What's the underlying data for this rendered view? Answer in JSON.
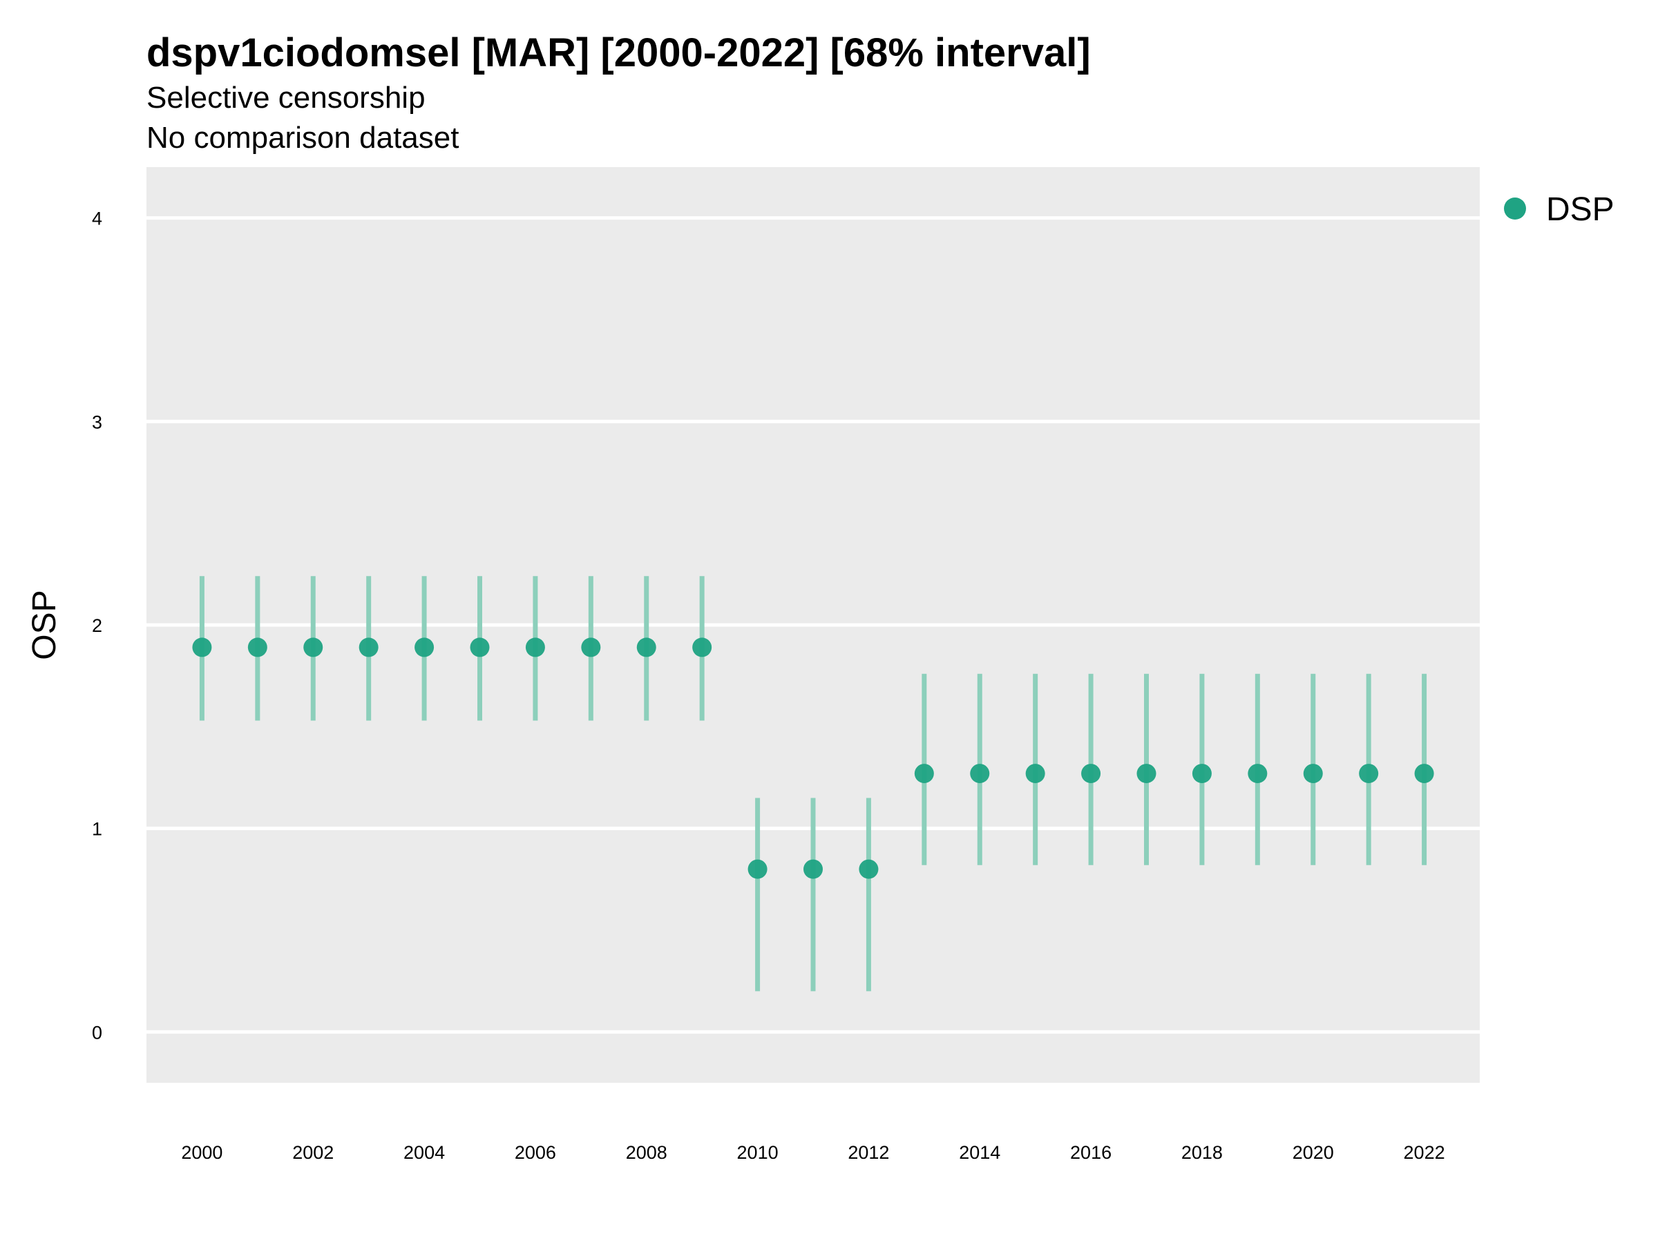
{
  "chart_data": {
    "type": "scatter",
    "title": "dspv1ciodomsel [MAR] [2000-2022] [68% interval]",
    "subtitle": "Selective censorship",
    "subtitle2": "No comparison dataset",
    "xlabel": "",
    "ylabel": "OSP",
    "ylim": [
      -0.25,
      4.25
    ],
    "xlim": [
      1999,
      2023
    ],
    "yticks": [
      0,
      1,
      2,
      3,
      4
    ],
    "xticks": [
      2000,
      2002,
      2004,
      2006,
      2008,
      2010,
      2012,
      2014,
      2016,
      2018,
      2020,
      2022
    ],
    "grid": true,
    "legend_position": "top-right",
    "series": [
      {
        "name": "DSP",
        "color": "#1fa383",
        "points": [
          {
            "x": 2000,
            "y": 1.89,
            "lower": 1.53,
            "upper": 2.24
          },
          {
            "x": 2001,
            "y": 1.89,
            "lower": 1.53,
            "upper": 2.24
          },
          {
            "x": 2002,
            "y": 1.89,
            "lower": 1.53,
            "upper": 2.24
          },
          {
            "x": 2003,
            "y": 1.89,
            "lower": 1.53,
            "upper": 2.24
          },
          {
            "x": 2004,
            "y": 1.89,
            "lower": 1.53,
            "upper": 2.24
          },
          {
            "x": 2005,
            "y": 1.89,
            "lower": 1.53,
            "upper": 2.24
          },
          {
            "x": 2006,
            "y": 1.89,
            "lower": 1.53,
            "upper": 2.24
          },
          {
            "x": 2007,
            "y": 1.89,
            "lower": 1.53,
            "upper": 2.24
          },
          {
            "x": 2008,
            "y": 1.89,
            "lower": 1.53,
            "upper": 2.24
          },
          {
            "x": 2009,
            "y": 1.89,
            "lower": 1.53,
            "upper": 2.24
          },
          {
            "x": 2010,
            "y": 0.8,
            "lower": 0.2,
            "upper": 1.15
          },
          {
            "x": 2011,
            "y": 0.8,
            "lower": 0.2,
            "upper": 1.15
          },
          {
            "x": 2012,
            "y": 0.8,
            "lower": 0.2,
            "upper": 1.15
          },
          {
            "x": 2013,
            "y": 1.27,
            "lower": 0.82,
            "upper": 1.76
          },
          {
            "x": 2014,
            "y": 1.27,
            "lower": 0.82,
            "upper": 1.76
          },
          {
            "x": 2015,
            "y": 1.27,
            "lower": 0.82,
            "upper": 1.76
          },
          {
            "x": 2016,
            "y": 1.27,
            "lower": 0.82,
            "upper": 1.76
          },
          {
            "x": 2017,
            "y": 1.27,
            "lower": 0.82,
            "upper": 1.76
          },
          {
            "x": 2018,
            "y": 1.27,
            "lower": 0.82,
            "upper": 1.76
          },
          {
            "x": 2019,
            "y": 1.27,
            "lower": 0.82,
            "upper": 1.76
          },
          {
            "x": 2020,
            "y": 1.27,
            "lower": 0.82,
            "upper": 1.76
          },
          {
            "x": 2021,
            "y": 1.27,
            "lower": 0.82,
            "upper": 1.76
          },
          {
            "x": 2022,
            "y": 1.27,
            "lower": 0.82,
            "upper": 1.76
          }
        ]
      }
    ]
  },
  "colors": {
    "panel_background": "#ebebeb",
    "grid_line": "#ffffff",
    "point": "#1fa383",
    "interval": "#8ccfbb"
  }
}
